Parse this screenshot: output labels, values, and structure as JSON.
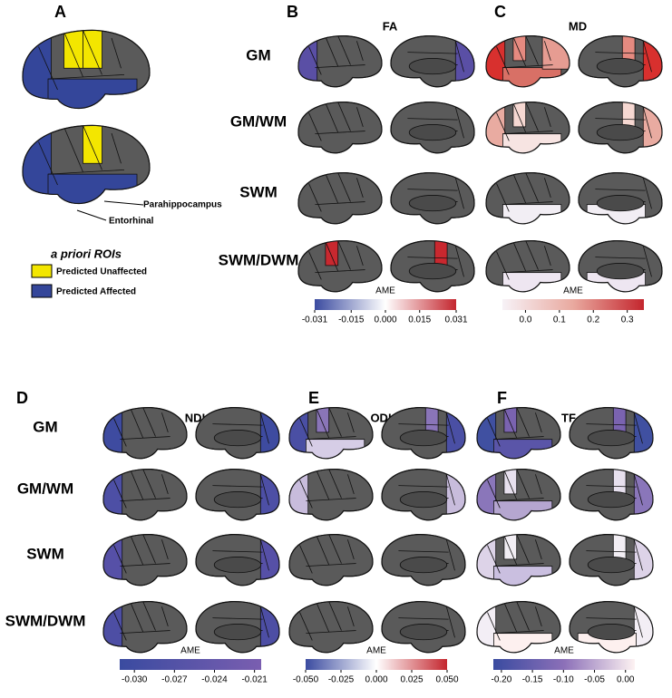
{
  "panel_a": {
    "letter": "A",
    "labels": [
      "Parahippocampus",
      "Entorhinal"
    ],
    "legend_title": "a priori ROIs",
    "legend": [
      {
        "label": "Predicted Unaffected",
        "color": "#f3e600"
      },
      {
        "label": "Predicted Affected",
        "color": "#34469a"
      }
    ]
  },
  "groups": [
    {
      "rows": [
        "GM",
        "GM/WM",
        "SWM",
        "SWM/DWM"
      ],
      "panels": [
        {
          "letter": "B",
          "title": "FA",
          "colorbar": {
            "label": "AME",
            "lim": [
              -0.031,
              0.031
            ],
            "colors": [
              "#3b4ba0",
              "#ffffff",
              "#c4262e"
            ],
            "ticks": [
              -0.031,
              -0.015,
              {
                "value": 0,
                "label": "0.000"
              },
              0.015,
              0.031
            ]
          }
        },
        {
          "letter": "C",
          "title": "MD",
          "colorbar": {
            "label": "AME",
            "lim": [
              -0.068,
              0.349
            ],
            "colors": [
              "#f7f2f7",
              "#e9a99f",
              "#c4262e"
            ],
            "ticks": [
              {
                "value": 0,
                "label": "0.0"
              },
              0.1,
              0.2,
              0.3
            ]
          }
        }
      ]
    },
    {
      "rows": [
        "GM",
        "GM/WM",
        "SWM",
        "SWM/DWM"
      ],
      "panels": [
        {
          "letter": "D",
          "title": "NDI",
          "colorbar": {
            "label": "AME",
            "lim": [
              -0.0311,
              -0.0205
            ],
            "colors": [
              "#3a4ba0",
              "#7a5eb0"
            ],
            "ticks": [
              {
                "value": -0.03,
                "label": "-0.030"
              },
              -0.027,
              -0.024,
              -0.021
            ]
          }
        },
        {
          "letter": "E",
          "title": "ODI",
          "colorbar": {
            "label": "AME",
            "lim": [
              -0.05,
              0.05
            ],
            "colors": [
              "#3b4ba0",
              "#ffffff",
              "#c4262e"
            ],
            "ticks": [
              {
                "value": -0.05,
                "label": "-0.050"
              },
              -0.025,
              {
                "value": 0,
                "label": "0.000"
              },
              0.025,
              {
                "value": 0.05,
                "label": "0.050"
              }
            ]
          }
        },
        {
          "letter": "F",
          "title": "TF",
          "colorbar": {
            "label": "AME",
            "lim": [
              -0.213,
              0.015
            ],
            "colors": [
              "#3a4ba0",
              "#8c70b8",
              "#fdf2f2"
            ],
            "ticks": [
              {
                "value": -0.2,
                "label": "-0.20"
              },
              -0.15,
              {
                "value": -0.1,
                "label": "-0.10"
              },
              -0.05,
              {
                "value": 0,
                "label": "0.00"
              }
            ]
          }
        }
      ]
    }
  ]
}
